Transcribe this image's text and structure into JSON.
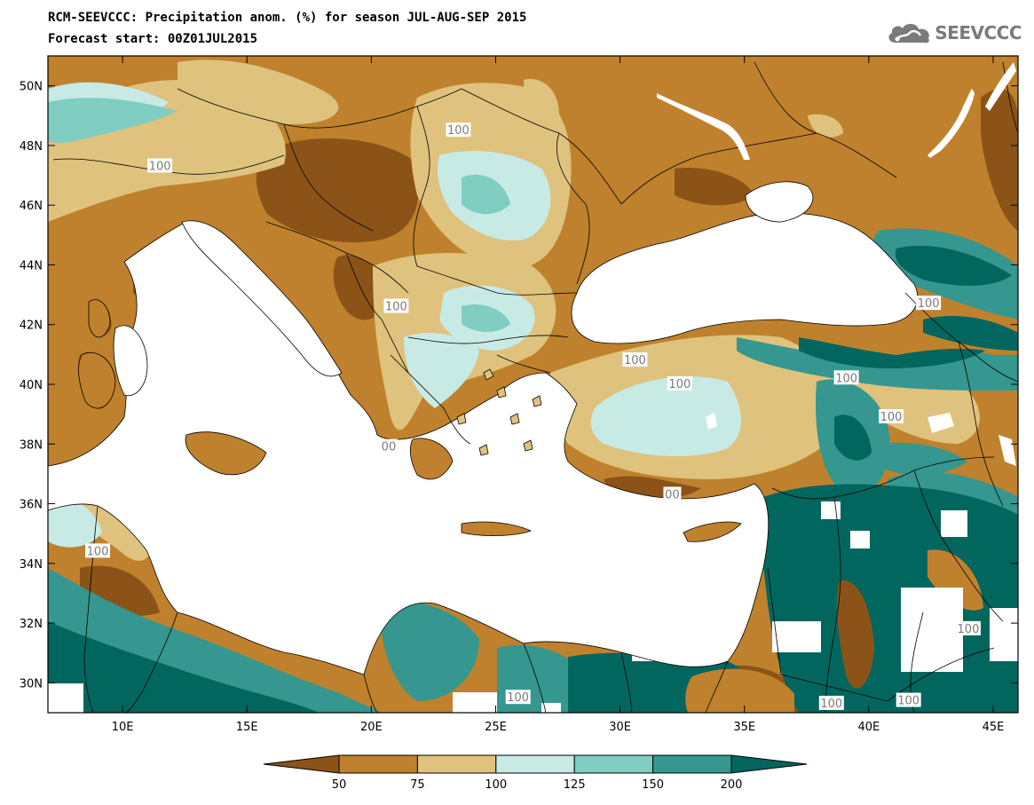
{
  "header": {
    "title": "RCM-SEEVCCC: Precipitation anom. (%) for season JUL-AUG-SEP 2015",
    "forecast_start": "Forecast start: 00Z01JUL2015"
  },
  "logo": {
    "text": "SEEVCCC",
    "icon": "cloud-icon"
  },
  "axes": {
    "x_ticks": [
      "10E",
      "15E",
      "20E",
      "25E",
      "30E",
      "35E",
      "40E",
      "45E"
    ],
    "y_ticks": [
      "50N",
      "48N",
      "46N",
      "44N",
      "42N",
      "40N",
      "38N",
      "36N",
      "34N",
      "32N",
      "30N"
    ]
  },
  "contour_labels": [
    {
      "text": "100",
      "lon": 23.5,
      "lat": 48.5
    },
    {
      "text": "100",
      "lon": 11.5,
      "lat": 47.3
    },
    {
      "text": "100",
      "lon": 21.0,
      "lat": 42.6
    },
    {
      "text": "100",
      "lon": 30.6,
      "lat": 40.8
    },
    {
      "text": "100",
      "lon": 32.4,
      "lat": 40.0
    },
    {
      "text": "100",
      "lon": 39.1,
      "lat": 40.2
    },
    {
      "text": "100",
      "lon": 42.4,
      "lat": 42.7
    },
    {
      "text": "100",
      "lon": 40.9,
      "lat": 38.9
    },
    {
      "text": "100",
      "lon": 9.0,
      "lat": 34.4
    },
    {
      "text": "00",
      "lon": 20.7,
      "lat": 37.9
    },
    {
      "text": "00",
      "lon": 32.1,
      "lat": 36.3
    },
    {
      "text": "100",
      "lon": 44.0,
      "lat": 31.8
    },
    {
      "text": "100",
      "lon": 25.9,
      "lat": 29.5
    },
    {
      "text": "100",
      "lon": 38.5,
      "lat": 29.3
    },
    {
      "text": "100",
      "lon": 41.6,
      "lat": 29.4
    }
  ],
  "colors": {
    "lt50": "#8b5318",
    "c50_75": "#bf812d",
    "c75_100": "#dfc27d",
    "c100_125": "#c7eae5",
    "c125_150": "#80cdc1",
    "c150_200": "#35978f",
    "gt200": "#01665e",
    "sea": "#ffffff",
    "boundary": "#000000"
  },
  "legend": {
    "ticks": [
      "50",
      "75",
      "100",
      "125",
      "150",
      "200"
    ],
    "colors": [
      "#8b5318",
      "#bf812d",
      "#dfc27d",
      "#c7eae5",
      "#80cdc1",
      "#35978f",
      "#01665e"
    ]
  }
}
